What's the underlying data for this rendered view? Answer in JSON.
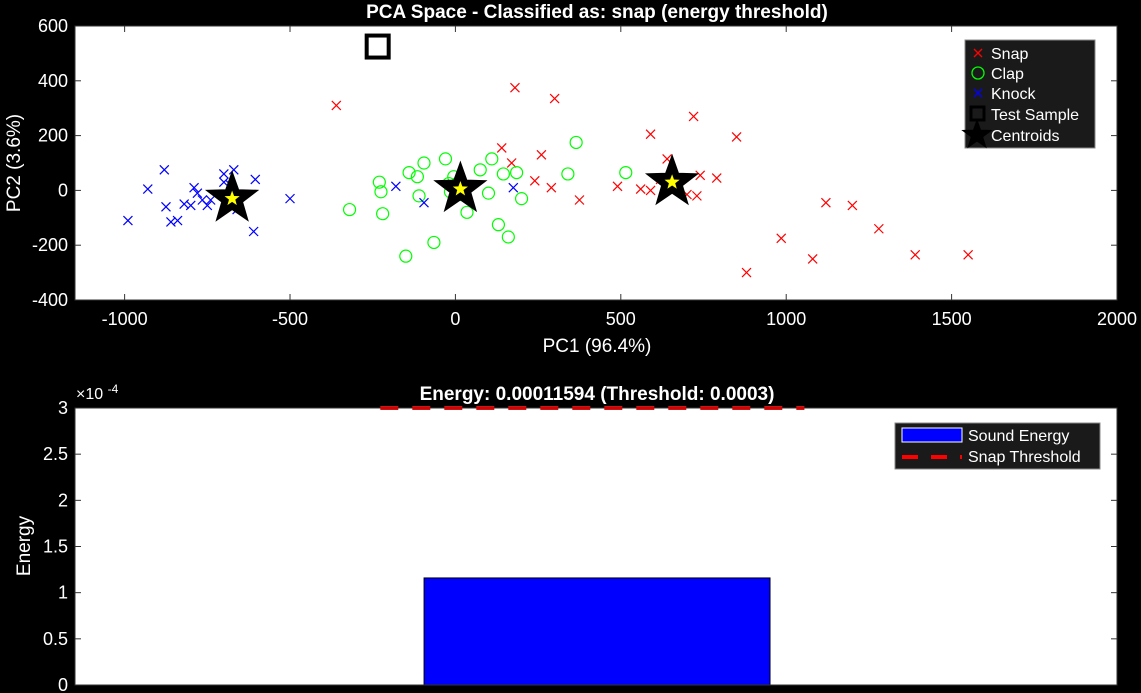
{
  "chart_data": [
    {
      "type": "scatter",
      "title": "PCA Space - Classified as: snap (energy threshold)",
      "xlabel": "PC1 (96.4%)",
      "ylabel": "PC2 (3.6%)",
      "xlim": [
        -1150,
        2000
      ],
      "ylim": [
        -400,
        600
      ],
      "xticks": [
        -1000,
        -500,
        0,
        500,
        1000,
        1500,
        2000
      ],
      "yticks": [
        -400,
        -200,
        0,
        200,
        400,
        600
      ],
      "xtick_labels": [
        "-1000",
        "-500",
        "0",
        "500",
        "1000",
        "1500",
        "2000"
      ],
      "ytick_labels": [
        "-400",
        "-200",
        "0",
        "200",
        "400",
        "600"
      ],
      "grid": false,
      "legend_position": "top-right",
      "colors": {
        "snap": "#ff0000",
        "clap": "#00ff00",
        "knock": "#0000ff",
        "test": "#000000",
        "centroid": "#000000",
        "centroid_inner": "#ffff00"
      },
      "series": [
        {
          "name": "Snap",
          "marker": "x",
          "points": [
            [
              -360,
              310
            ],
            [
              180,
              375
            ],
            [
              300,
              335
            ],
            [
              590,
              205
            ],
            [
              720,
              270
            ],
            [
              850,
              195
            ],
            [
              140,
              155
            ],
            [
              170,
              100
            ],
            [
              260,
              130
            ],
            [
              240,
              35
            ],
            [
              290,
              10
            ],
            [
              375,
              -35
            ],
            [
              490,
              15
            ],
            [
              560,
              5
            ],
            [
              590,
              0
            ],
            [
              620,
              40
            ],
            [
              640,
              115
            ],
            [
              670,
              30
            ],
            [
              700,
              -15
            ],
            [
              730,
              -20
            ],
            [
              740,
              55
            ],
            [
              790,
              45
            ],
            [
              880,
              -300
            ],
            [
              985,
              -175
            ],
            [
              1080,
              -250
            ],
            [
              1120,
              -45
            ],
            [
              1200,
              -55
            ],
            [
              1280,
              -140
            ],
            [
              1390,
              -235
            ],
            [
              1550,
              -235
            ]
          ]
        },
        {
          "name": "Clap",
          "marker": "o",
          "points": [
            [
              -320,
              -70
            ],
            [
              -230,
              30
            ],
            [
              -225,
              -5
            ],
            [
              -220,
              -85
            ],
            [
              -150,
              -240
            ],
            [
              -140,
              65
            ],
            [
              -115,
              50
            ],
            [
              -110,
              -20
            ],
            [
              -95,
              100
            ],
            [
              -65,
              -190
            ],
            [
              -30,
              115
            ],
            [
              -20,
              25
            ],
            [
              -15,
              -5
            ],
            [
              5,
              25
            ],
            [
              -5,
              50
            ],
            [
              15,
              -15
            ],
            [
              35,
              -80
            ],
            [
              75,
              75
            ],
            [
              100,
              -10
            ],
            [
              110,
              115
            ],
            [
              130,
              -125
            ],
            [
              145,
              60
            ],
            [
              160,
              -170
            ],
            [
              185,
              65
            ],
            [
              200,
              -30
            ],
            [
              340,
              60
            ],
            [
              365,
              175
            ],
            [
              515,
              65
            ]
          ]
        },
        {
          "name": "Knock",
          "marker": "x",
          "points": [
            [
              -990,
              -110
            ],
            [
              -930,
              5
            ],
            [
              -880,
              75
            ],
            [
              -875,
              -60
            ],
            [
              -860,
              -115
            ],
            [
              -840,
              -110
            ],
            [
              -820,
              -50
            ],
            [
              -800,
              -55
            ],
            [
              -790,
              10
            ],
            [
              -780,
              -10
            ],
            [
              -765,
              -35
            ],
            [
              -750,
              -55
            ],
            [
              -740,
              -35
            ],
            [
              -700,
              60
            ],
            [
              -700,
              30
            ],
            [
              -690,
              -30
            ],
            [
              -680,
              20
            ],
            [
              -670,
              75
            ],
            [
              -660,
              -70
            ],
            [
              -610,
              -150
            ],
            [
              -605,
              40
            ],
            [
              -500,
              -30
            ],
            [
              -180,
              15
            ],
            [
              -95,
              -45
            ],
            [
              175,
              10
            ]
          ]
        },
        {
          "name": "Test Sample",
          "marker": "square",
          "points": [
            [
              -235,
              525
            ]
          ]
        },
        {
          "name": "Centroids",
          "marker": "star",
          "points": [
            [
              -675,
              -30
            ],
            [
              15,
              5
            ],
            [
              655,
              30
            ]
          ]
        }
      ]
    },
    {
      "type": "bar",
      "title": "Energy: 0.00011594 (Threshold: 0.0003)",
      "ylabel": "Energy",
      "xlabel": "",
      "exponent_label": "×10",
      "exponent_power": "-4",
      "ylim": [
        0,
        0.0003
      ],
      "yticks": [
        0,
        5e-05,
        0.0001,
        0.00015,
        0.0002,
        0.00025,
        0.0003
      ],
      "ytick_labels": [
        "0",
        "0.5",
        "1",
        "1.5",
        "2",
        "2.5",
        "3"
      ],
      "grid": false,
      "legend_position": "top-right",
      "colors": {
        "bar": "#0000ff",
        "threshold": "#ff0000"
      },
      "series": [
        {
          "name": "Sound Energy",
          "values": [
            0.00011594
          ]
        },
        {
          "name": "Snap Threshold",
          "threshold": 0.0003
        }
      ]
    }
  ]
}
